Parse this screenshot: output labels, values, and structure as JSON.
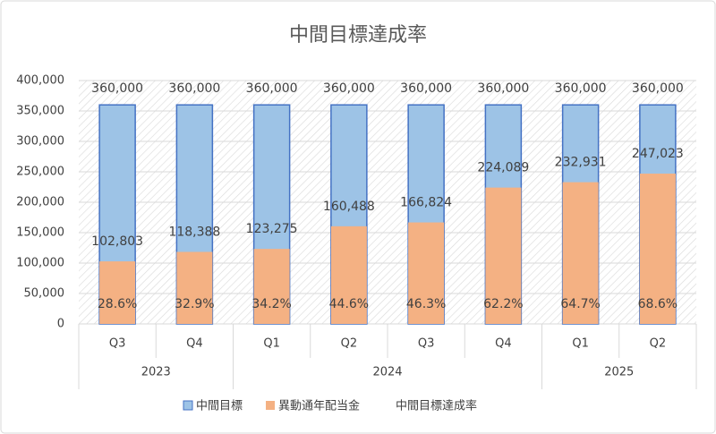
{
  "chart_data": {
    "type": "bar",
    "title": "中間目標達成率",
    "category_groups": [
      {
        "name": "2023",
        "categories": [
          "Q3",
          "Q4"
        ]
      },
      {
        "name": "2024",
        "categories": [
          "Q1",
          "Q2",
          "Q3",
          "Q4"
        ]
      },
      {
        "name": "2025",
        "categories": [
          "Q1",
          "Q2"
        ]
      }
    ],
    "series": [
      {
        "name": "中間目標",
        "color": "#9dc3e6",
        "edge": "#4472c4",
        "values": [
          360000,
          360000,
          360000,
          360000,
          360000,
          360000,
          360000,
          360000
        ],
        "value_labels": [
          "360,000",
          "360,000",
          "360,000",
          "360,000",
          "360,000",
          "360,000",
          "360,000",
          "360,000"
        ]
      },
      {
        "name": "異動通年配当金",
        "color": "#f4b183",
        "values": [
          102803,
          118388,
          123275,
          160488,
          166824,
          224089,
          232931,
          247023
        ],
        "value_labels": [
          "102,803",
          "118,388",
          "123,275",
          "160,488",
          "166,824",
          "224,089",
          "232,931",
          "247,023"
        ]
      },
      {
        "name": "中間目標達成率",
        "values": [
          28.6,
          32.9,
          34.2,
          44.6,
          46.3,
          62.2,
          64.7,
          68.6
        ],
        "value_labels": [
          "28.6%",
          "32.9%",
          "34.2%",
          "44.6%",
          "46.3%",
          "62.2%",
          "64.7%",
          "68.6%"
        ]
      }
    ],
    "ylim": [
      0,
      400000
    ],
    "yticks": [
      0,
      {
        "value": 50000,
        "label": "50,000"
      },
      {
        "value": 100000,
        "label": "100,000"
      },
      {
        "value": 150000,
        "label": "150,000"
      },
      {
        "value": 200000,
        "label": "200,000"
      },
      {
        "value": 250000,
        "label": "250,000"
      },
      {
        "value": 300000,
        "label": "300,000"
      },
      {
        "value": 350000,
        "label": "350,000"
      },
      {
        "value": 400000,
        "label": "400,000"
      }
    ],
    "grid": true,
    "legend": "bottom"
  }
}
